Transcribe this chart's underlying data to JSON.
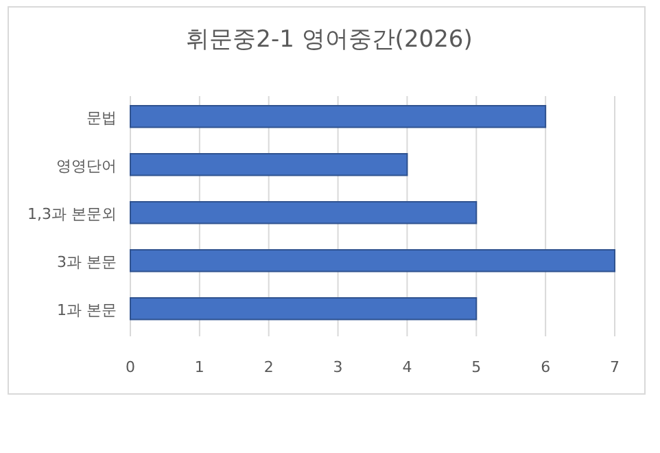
{
  "chart_data": {
    "type": "bar",
    "orientation": "horizontal",
    "title": "휘문중2-1 영어중간(2026)",
    "categories": [
      "문법",
      "영영단어",
      "1,3과 본문외",
      "3과 본문",
      "1과 본문"
    ],
    "values": [
      6,
      4,
      5,
      7,
      5
    ],
    "color": "#4472c4",
    "xlim": [
      0,
      7
    ],
    "xticks": [
      0,
      1,
      2,
      3,
      4,
      5,
      6,
      7
    ],
    "grid": "x"
  }
}
